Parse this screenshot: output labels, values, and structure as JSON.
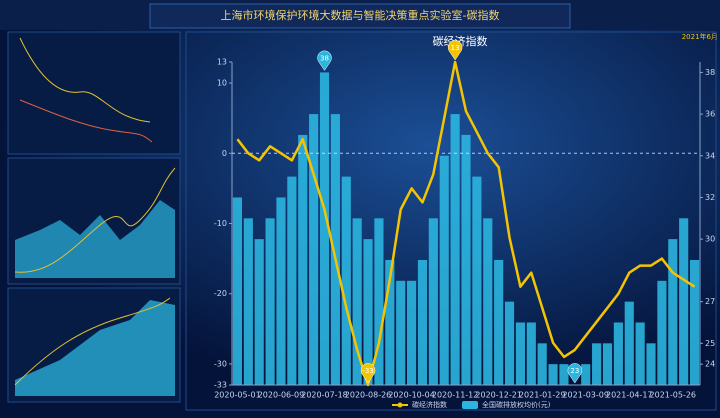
{
  "header": {
    "title": "上海市环境保护环境大数据与智能决策重点实验室-碳指数",
    "date": "2021年6月"
  },
  "chart_data": {
    "type": "bar-line",
    "title": "碳经济指数",
    "categories": [
      "2020-05-01",
      null,
      null,
      null,
      "2020-06-09",
      null,
      null,
      null,
      "2020-07-18",
      null,
      null,
      null,
      "2020-08-26",
      null,
      null,
      null,
      "2020-10-04",
      null,
      null,
      null,
      "2020-11-12",
      null,
      null,
      null,
      "2020-12-21",
      null,
      null,
      null,
      "2021-01-29",
      null,
      null,
      null,
      "2021-03-09",
      null,
      null,
      null,
      "2021-04-17",
      null,
      null,
      null,
      "2021-05-26",
      null,
      null
    ],
    "series": [
      {
        "name": "碳经济指数",
        "color": "#f5c400",
        "type": "line",
        "values": [
          2,
          0,
          -1,
          1,
          0,
          -1,
          2,
          -3,
          -8,
          -15,
          -22,
          -28,
          -33,
          -27,
          -18,
          -8,
          -5,
          -7,
          -3,
          5,
          13,
          6,
          3,
          0,
          -2,
          -12,
          -19,
          -17,
          -22,
          -27,
          -29,
          -28,
          -26,
          -24,
          -22,
          -20,
          -17,
          -16,
          -16,
          -15,
          -17,
          -18,
          -19
        ]
      },
      {
        "name": "全国碳排放权均价(元)",
        "color": "#2bb5df",
        "type": "bar",
        "axis": "y2",
        "values": [
          32,
          31,
          30,
          31,
          32,
          33,
          35,
          36,
          38,
          36,
          33,
          31,
          30,
          31,
          29,
          28,
          28,
          29,
          31,
          34,
          36,
          35,
          33,
          31,
          29,
          27,
          26,
          26,
          25,
          24,
          24,
          23,
          24,
          25,
          25,
          26,
          27,
          26,
          25,
          28,
          30,
          31,
          29
        ]
      }
    ],
    "ylim": [
      -33,
      13
    ],
    "yticks": [
      13,
      10,
      0,
      -10,
      -20,
      -30,
      -33
    ],
    "y2lim": [
      23,
      38.5
    ],
    "y2ticks": [
      38,
      36,
      34,
      32,
      30,
      27,
      25,
      24
    ],
    "markers": [
      {
        "series": 1,
        "index": 8
      },
      {
        "series": 1,
        "index": 31
      },
      {
        "series": 0,
        "index": 20
      },
      {
        "series": 0,
        "index": 12
      }
    ],
    "legend": "bottom"
  }
}
